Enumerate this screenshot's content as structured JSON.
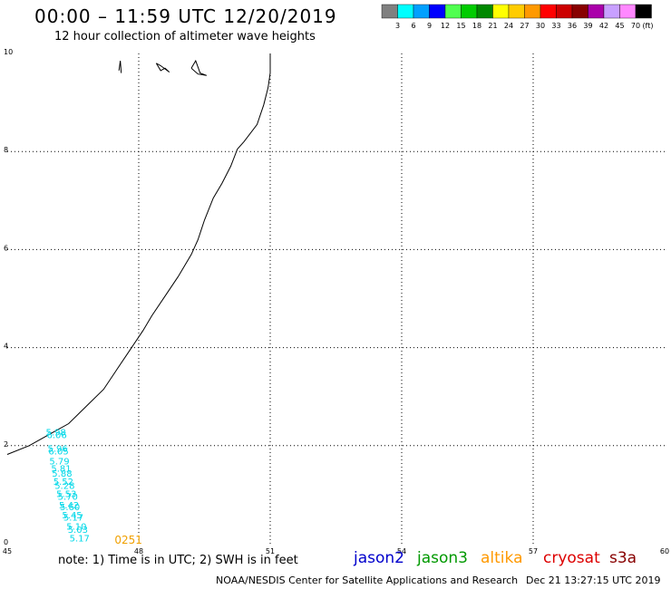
{
  "header": {
    "title": "00:00 – 11:59 UTC 12/20/2019",
    "subtitle": "12 hour collection of altimeter wave heights"
  },
  "legend": {
    "unit": "(ft)",
    "bins": [
      {
        "label": "3",
        "color": "#808080"
      },
      {
        "label": "6",
        "color": "#00ffff"
      },
      {
        "label": "9",
        "color": "#00a0ff"
      },
      {
        "label": "12",
        "color": "#0000ff"
      },
      {
        "label": "15",
        "color": "#50ff50"
      },
      {
        "label": "18",
        "color": "#00cc00"
      },
      {
        "label": "21",
        "color": "#008800"
      },
      {
        "label": "24",
        "color": "#ffff00"
      },
      {
        "label": "27",
        "color": "#ffcc00"
      },
      {
        "label": "30",
        "color": "#ff9900"
      },
      {
        "label": "33",
        "color": "#ff0000"
      },
      {
        "label": "36",
        "color": "#cc0000"
      },
      {
        "label": "39",
        "color": "#880000"
      },
      {
        "label": "42",
        "color": "#aa00aa"
      },
      {
        "label": "45",
        "color": "#c8a0ff"
      },
      {
        "label": "70",
        "color": "#ff88ff"
      },
      {
        "label": "",
        "color": "#000000"
      }
    ]
  },
  "map": {
    "lon_ticks": [
      "45",
      "48",
      "51",
      "54",
      "57",
      "60"
    ],
    "lat_ticks": [
      "0",
      "2",
      "4",
      "6",
      "8",
      "10"
    ],
    "lon_range": [
      45,
      60
    ],
    "lat_range": [
      0,
      10
    ],
    "grid": true,
    "coastline": [
      [
        45.0,
        1.82
      ],
      [
        45.5,
        2.0
      ],
      [
        46.0,
        2.25
      ],
      [
        46.4,
        2.45
      ],
      [
        46.8,
        2.8
      ],
      [
        47.2,
        3.15
      ],
      [
        47.5,
        3.55
      ],
      [
        47.8,
        3.95
      ],
      [
        48.1,
        4.35
      ],
      [
        48.3,
        4.65
      ],
      [
        48.6,
        5.05
      ],
      [
        48.9,
        5.45
      ],
      [
        49.2,
        5.9
      ],
      [
        49.35,
        6.2
      ],
      [
        49.5,
        6.6
      ],
      [
        49.7,
        7.05
      ],
      [
        49.9,
        7.35
      ],
      [
        50.1,
        7.7
      ],
      [
        50.25,
        8.05
      ],
      [
        50.4,
        8.2
      ],
      [
        50.7,
        8.55
      ],
      [
        50.85,
        8.95
      ],
      [
        50.95,
        9.3
      ],
      [
        51.0,
        9.6
      ],
      [
        51.0,
        9.9
      ],
      [
        51.0,
        10.0
      ]
    ],
    "islands": [
      [
        [
          47.55,
          9.65
        ],
        [
          47.58,
          9.85
        ],
        [
          47.6,
          9.6
        ]
      ],
      [
        [
          48.4,
          9.8
        ],
        [
          48.5,
          9.65
        ],
        [
          48.6,
          9.7
        ],
        [
          48.7,
          9.62
        ],
        [
          48.5,
          9.75
        ],
        [
          48.4,
          9.8
        ]
      ],
      [
        [
          49.2,
          9.7
        ],
        [
          49.3,
          9.85
        ],
        [
          49.4,
          9.6
        ],
        [
          49.55,
          9.55
        ],
        [
          49.35,
          9.58
        ],
        [
          49.2,
          9.7
        ]
      ]
    ],
    "track": {
      "color": "#00d8e8",
      "time_label": "0251",
      "time_color": "#f0a000",
      "time_at": [
        47.45,
        0.0
      ],
      "points": [
        {
          "lon": 45.88,
          "lat": 2.21,
          "swh": "5.98"
        },
        {
          "lon": 45.9,
          "lat": 2.15,
          "swh": "6.06"
        },
        {
          "lon": 45.92,
          "lat": 1.88,
          "swh": "5.96"
        },
        {
          "lon": 45.94,
          "lat": 1.82,
          "swh": "6.05"
        },
        {
          "lon": 45.96,
          "lat": 1.62,
          "swh": "5.79"
        },
        {
          "lon": 46.0,
          "lat": 1.47,
          "swh": "5.81"
        },
        {
          "lon": 46.02,
          "lat": 1.37,
          "swh": "5.88"
        },
        {
          "lon": 46.05,
          "lat": 1.2,
          "swh": "5.52"
        },
        {
          "lon": 46.08,
          "lat": 1.12,
          "swh": "5.28"
        },
        {
          "lon": 46.12,
          "lat": 0.95,
          "swh": "5.53"
        },
        {
          "lon": 46.15,
          "lat": 0.9,
          "swh": "5.70"
        },
        {
          "lon": 46.18,
          "lat": 0.72,
          "swh": "5.42"
        },
        {
          "lon": 46.2,
          "lat": 0.68,
          "swh": "5.60"
        },
        {
          "lon": 46.25,
          "lat": 0.52,
          "swh": "5.45"
        },
        {
          "lon": 46.28,
          "lat": 0.47,
          "swh": "5.17"
        },
        {
          "lon": 46.35,
          "lat": 0.29,
          "swh": "5.10"
        },
        {
          "lon": 46.38,
          "lat": 0.22,
          "swh": "5.03"
        },
        {
          "lon": 46.42,
          "lat": 0.05,
          "swh": "5.17"
        }
      ]
    }
  },
  "footer": {
    "note": "note: 1) Time is in UTC; 2) SWH is in feet",
    "satellites": [
      {
        "name": "jason2",
        "color": "#0000cc"
      },
      {
        "name": "jason3",
        "color": "#009900"
      },
      {
        "name": "altika",
        "color": "#ff9900"
      },
      {
        "name": "cryosat",
        "color": "#dd0000"
      },
      {
        "name": "s3a",
        "color": "#880000"
      }
    ],
    "credit": "NOAA/NESDIS Center for Satellite Applications and Research",
    "timestamp": "Dec 21 13:27:15 UTC 2019"
  }
}
